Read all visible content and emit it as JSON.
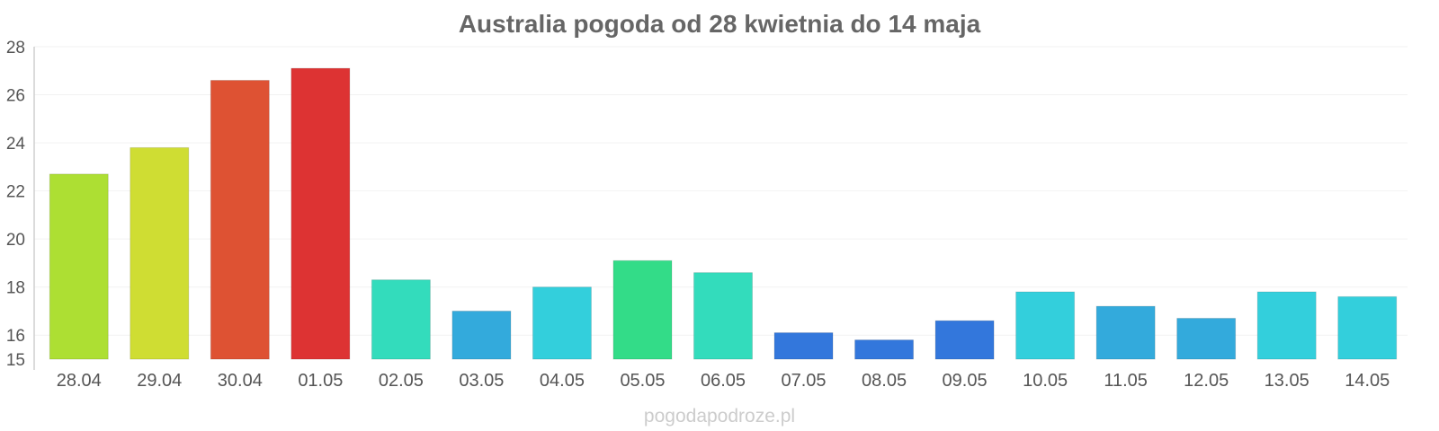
{
  "chart_data": {
    "type": "bar",
    "title": "Australia pogoda od 28 kwietnia do 14 maja",
    "xlabel": "",
    "ylabel": "",
    "ylim": [
      15,
      28
    ],
    "yticks": [
      15,
      16,
      18,
      20,
      22,
      24,
      26,
      28
    ],
    "grid": true,
    "categories": [
      "28.04",
      "29.04",
      "30.04",
      "01.05",
      "02.05",
      "03.05",
      "04.05",
      "05.05",
      "06.05",
      "07.05",
      "08.05",
      "09.05",
      "10.05",
      "11.05",
      "12.05",
      "13.05",
      "14.05"
    ],
    "values": [
      22.7,
      23.8,
      26.6,
      27.1,
      18.3,
      17.0,
      18.0,
      19.1,
      18.6,
      16.1,
      15.8,
      16.6,
      17.8,
      17.2,
      16.7,
      17.8,
      17.6
    ],
    "colors": [
      "#addf33",
      "#cfdd33",
      "#de5233",
      "#dd3333",
      "#33dcbc",
      "#33aadc",
      "#33cfdc",
      "#33dc88",
      "#33dcbc",
      "#3377dc",
      "#3377dc",
      "#3377dc",
      "#33cfdc",
      "#33aadc",
      "#33aadc",
      "#33cfdc",
      "#33cfdc"
    ]
  },
  "credit": "pogodapodroze.pl"
}
